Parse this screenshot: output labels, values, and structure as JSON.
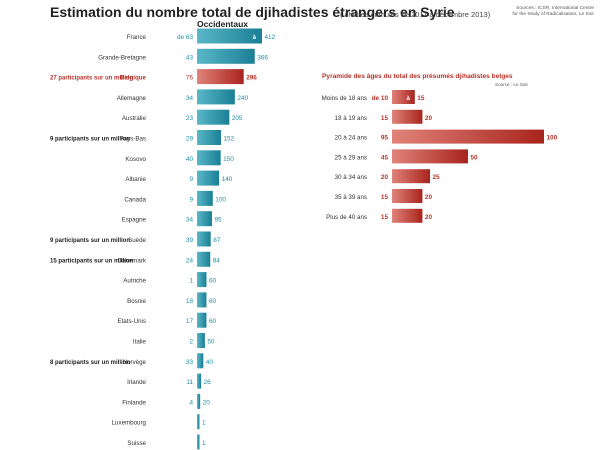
{
  "header": {
    "title": "Estimation du nombre total de djihadistes étrangers en Syrie",
    "subtitle": "( chiffres cumulés de 2011 à décembre 2013)",
    "sources_line1": "Sources : ICSR, International Centre",
    "sources_line2": "for the Study of Radicalisation, Le Soir"
  },
  "colors": {
    "teal": "#1e8fa6",
    "red": "#b53028",
    "red_text": "#b8322a",
    "text": "#333333",
    "title": "#222222"
  },
  "chart_data": [
    {
      "type": "bar",
      "orientation": "horizontal",
      "title": "Occidentaux",
      "categories": [
        "France",
        "Grande-Bretagne",
        "Belgique",
        "Allemagne",
        "Australie",
        "Pays-Bas",
        "Kosovo",
        "Albanie",
        "Canada",
        "Espagne",
        "Suède",
        "Danemark",
        "Autriche",
        "Bosnie",
        "Etats-Unis",
        "Italie",
        "Norvège",
        "Irlande",
        "Finlande",
        "Luxembourg",
        "Suisse"
      ],
      "series": [
        {
          "name": "min",
          "values": [
            63,
            43,
            76,
            34,
            23,
            29,
            40,
            9,
            9,
            34,
            39,
            24,
            1,
            18,
            17,
            2,
            33,
            11,
            4,
            null,
            null
          ]
        },
        {
          "name": "max",
          "values": [
            412,
            366,
            296,
            240,
            205,
            152,
            150,
            140,
            100,
            95,
            87,
            84,
            60,
            60,
            60,
            50,
            40,
            26,
            20,
            1,
            1
          ]
        }
      ],
      "min_prefix": {
        "0": "de"
      },
      "max_prefix": {
        "0": "à"
      },
      "highlight": [
        "Belgique"
      ],
      "annotations": [
        {
          "category": "Belgique",
          "text": "27 participants sur un million"
        },
        {
          "category": "Pays-Bas",
          "text": "9 participants sur un million"
        },
        {
          "category": "Suède",
          "text": "9 participants sur un million"
        },
        {
          "category": "Danemark",
          "text": "15 participants sur un million"
        },
        {
          "category": "Norvège",
          "text": "8 participants sur un million"
        }
      ]
    },
    {
      "type": "bar",
      "orientation": "horizontal",
      "title": "Pyramide des âges du total des présumés djihadistes belges",
      "source": "Source : Le Soir",
      "categories": [
        "Moins de 18 ans",
        "18 à 19 ans",
        "20 à 24 ans",
        "25 à 29 ans",
        "30 à 34 ans",
        "35 à 39 ans",
        "Plus de 40 ans"
      ],
      "series": [
        {
          "name": "min",
          "values": [
            10,
            15,
            95,
            45,
            20,
            15,
            15
          ]
        },
        {
          "name": "max",
          "values": [
            15,
            20,
            100,
            50,
            25,
            20,
            20
          ]
        }
      ],
      "min_prefix": {
        "0": "de"
      },
      "max_prefix": {
        "0": "à"
      }
    }
  ]
}
